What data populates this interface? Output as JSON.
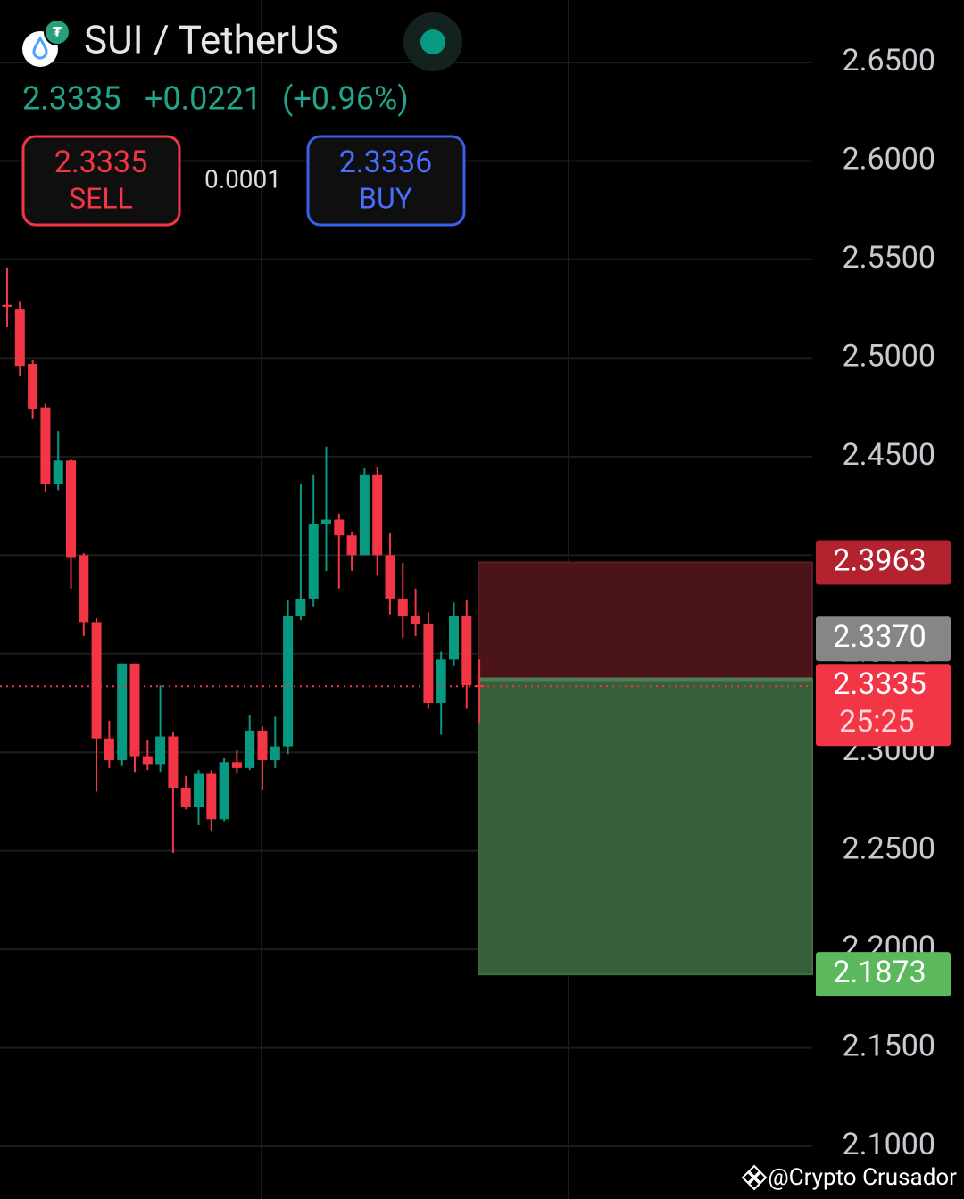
{
  "header": {
    "symbol": "SUI / TetherUS",
    "price": "2.3335",
    "change": "+0.0221",
    "change_pct": "(+0.96%)",
    "sell_price": "2.3335",
    "sell_label": "SELL",
    "spread": "0.0001",
    "buy_price": "2.3336",
    "buy_label": "BUY"
  },
  "chart_data": {
    "type": "candlestick",
    "open": [
      2.527,
      2.525,
      2.497,
      2.475,
      2.436,
      2.448,
      2.4,
      2.366,
      2.307,
      2.296,
      2.345,
      2.298,
      2.294,
      2.308,
      2.282,
      2.272,
      2.289,
      2.266,
      2.295,
      2.292,
      2.311,
      2.296,
      2.303,
      2.369,
      2.378,
      2.416,
      2.418,
      2.41,
      2.4,
      2.441,
      2.4,
      2.378,
      2.369,
      2.365,
      2.325,
      2.347,
      2.369,
      2.334
    ],
    "high": [
      2.546,
      2.529,
      2.499,
      2.477,
      2.463,
      2.449,
      2.401,
      2.368,
      2.316,
      2.345,
      2.345,
      2.306,
      2.334,
      2.31,
      2.288,
      2.291,
      2.291,
      2.297,
      2.301,
      2.319,
      2.313,
      2.318,
      2.377,
      2.436,
      2.441,
      2.455,
      2.421,
      2.412,
      2.444,
      2.445,
      2.411,
      2.396,
      2.383,
      2.371,
      2.351,
      2.376,
      2.377,
      2.347
    ],
    "low": [
      2.516,
      2.491,
      2.469,
      2.432,
      2.433,
      2.383,
      2.359,
      2.28,
      2.292,
      2.293,
      2.29,
      2.291,
      2.29,
      2.249,
      2.271,
      2.263,
      2.26,
      2.265,
      2.289,
      2.291,
      2.281,
      2.292,
      2.299,
      2.367,
      2.374,
      2.392,
      2.383,
      2.392,
      2.4,
      2.39,
      2.37,
      2.358,
      2.359,
      2.322,
      2.309,
      2.344,
      2.322,
      2.315
    ],
    "close": [
      2.526,
      2.496,
      2.474,
      2.436,
      2.448,
      2.399,
      2.366,
      2.307,
      2.296,
      2.345,
      2.298,
      2.294,
      2.308,
      2.282,
      2.272,
      2.289,
      2.266,
      2.295,
      2.292,
      2.311,
      2.296,
      2.303,
      2.369,
      2.378,
      2.416,
      2.418,
      2.41,
      2.4,
      2.441,
      2.4,
      2.378,
      2.369,
      2.365,
      2.325,
      2.347,
      2.369,
      2.334,
      2.3335
    ],
    "up_color": "#089981",
    "down_color": "#f23645",
    "ylim": [
      2.0733,
      2.6817
    ],
    "yticks": [
      {
        "value": 2.65,
        "label": "2.6500"
      },
      {
        "value": 2.6,
        "label": "2.6000"
      },
      {
        "value": 2.55,
        "label": "2.5500"
      },
      {
        "value": 2.5,
        "label": "2.5000"
      },
      {
        "value": 2.45,
        "label": "2.4500"
      },
      {
        "value": 2.4,
        "label": "2.4000"
      },
      {
        "value": 2.35,
        "label": "2.3500"
      },
      {
        "value": 2.3,
        "label": "2.3000"
      },
      {
        "value": 2.25,
        "label": "2.2500"
      },
      {
        "value": 2.2,
        "label": "2.2000"
      },
      {
        "value": 2.15,
        "label": "2.1500"
      },
      {
        "value": 2.1,
        "label": "2.1000"
      }
    ],
    "grid": true,
    "last_price": {
      "value": 2.3335,
      "label": "2.3335",
      "color": "#f23645"
    },
    "countdown": "25:25",
    "position": {
      "stop": {
        "value": 2.3963,
        "label": "2.3963",
        "color": "#b2222f",
        "zone_color": "#4a1419"
      },
      "entry": {
        "value": 2.337,
        "label": "2.3370",
        "color": "#868686"
      },
      "target": {
        "value": 2.1873,
        "label": "2.1873",
        "color": "#5cb85c",
        "zone_color": "#365e3a"
      }
    }
  },
  "watermark": "@Crypto Crusador"
}
